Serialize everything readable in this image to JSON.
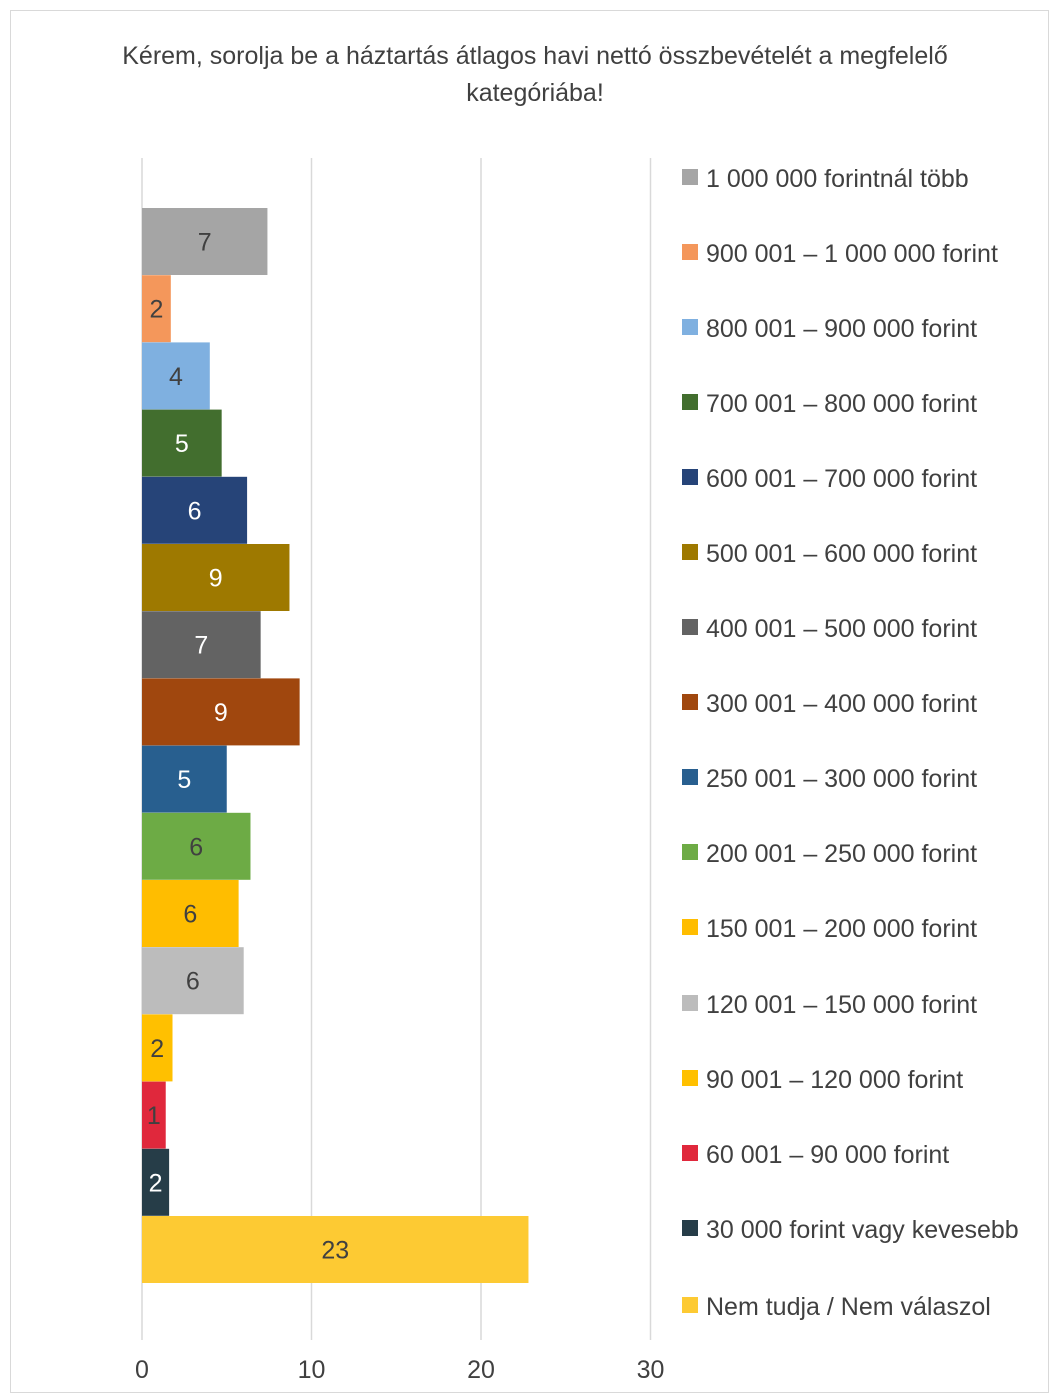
{
  "chart_data": {
    "type": "bar",
    "orientation": "horizontal",
    "title": "Kérem, sorolja be a háztartás átlagos havi nettó összbevételét a megfelelő kategóriába!",
    "xlabel": "",
    "ylabel": "",
    "xlim": [
      0,
      30
    ],
    "x_ticks": [
      "0",
      "10",
      "20",
      "30"
    ],
    "gridlines": true,
    "legend_position": "right",
    "categories": [
      "1 000 000 forintnál több",
      "900 001 – 1 000 000 forint",
      "800 001 – 900 000 forint",
      "700 001 – 800 000 forint",
      "600 001 – 700 000 forint",
      "500 001 – 600 000 forint",
      "400 001 – 500 000 forint",
      "300 001 – 400 000 forint",
      "250 001 – 300 000 forint",
      "200 001 – 250 000 forint",
      "150 001 – 200 000 forint",
      "120 001 – 150 000 forint",
      "90 001 – 120 000 forint",
      "60 001 – 90 000 forint",
      "30 000 forint vagy kevesebb",
      "Nem tudja / Nem válaszol"
    ],
    "values": [
      7.4,
      1.7,
      4.0,
      4.7,
      6.2,
      8.7,
      7.0,
      9.3,
      5.0,
      6.4,
      5.7,
      6.0,
      1.8,
      1.4,
      1.6,
      22.8
    ],
    "data_labels": [
      "7",
      "2",
      "4",
      "5",
      "6",
      "9",
      "7",
      "9",
      "5",
      "6",
      "6",
      "6",
      "2",
      "1",
      "2",
      "23"
    ],
    "colors": [
      "#a5a5a5",
      "#f4975b",
      "#7fb0e0",
      "#426e2e",
      "#264478",
      "#9e7900",
      "#636363",
      "#a0470e",
      "#285f8f",
      "#6dab45",
      "#ffbd00",
      "#bcbcbc",
      "#ffc000",
      "#e0283c",
      "#263d48",
      "#fdca33"
    ],
    "label_colors": [
      "#404040",
      "#404040",
      "#404040",
      "#ffffff",
      "#ffffff",
      "#ffffff",
      "#ffffff",
      "#ffffff",
      "#ffffff",
      "#404040",
      "#404040",
      "#404040",
      "#404040",
      "#404040",
      "#ffffff",
      "#404040"
    ]
  }
}
